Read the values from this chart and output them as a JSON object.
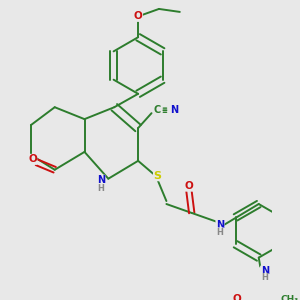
{
  "bg_color": "#e8e8e8",
  "bond_color": "#2d7d2d",
  "atom_colors": {
    "N": "#1010cc",
    "O": "#cc1010",
    "S": "#cccc00",
    "C": "#2d7d2d",
    "H": "#888888"
  },
  "bond_lw": 1.4,
  "font_size": 7.5
}
